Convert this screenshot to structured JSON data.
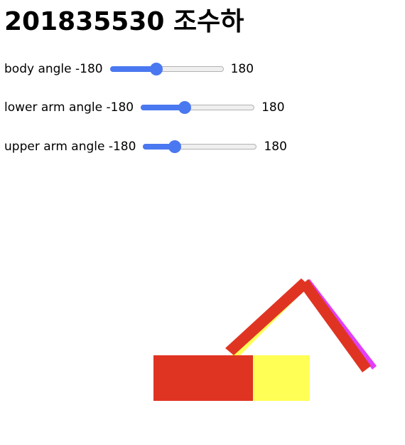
{
  "header": {
    "title": "201835530 조수하"
  },
  "controls": [
    {
      "label": "body angle -180",
      "max_label": "180",
      "value": -36,
      "min": -180,
      "max": 180
    },
    {
      "label": "lower arm angle -180",
      "max_label": "180",
      "value": -45,
      "min": -180,
      "max": 180
    },
    {
      "label": "upper arm angle -180",
      "max_label": "180",
      "value": -90,
      "min": -180,
      "max": 180
    }
  ],
  "colors": {
    "slider_accent": "#4a78f0",
    "body_red": "#e03423",
    "body_yellow": "#ffff55",
    "arm_red": "#e03423",
    "arm_magenta": "#e040fb"
  }
}
